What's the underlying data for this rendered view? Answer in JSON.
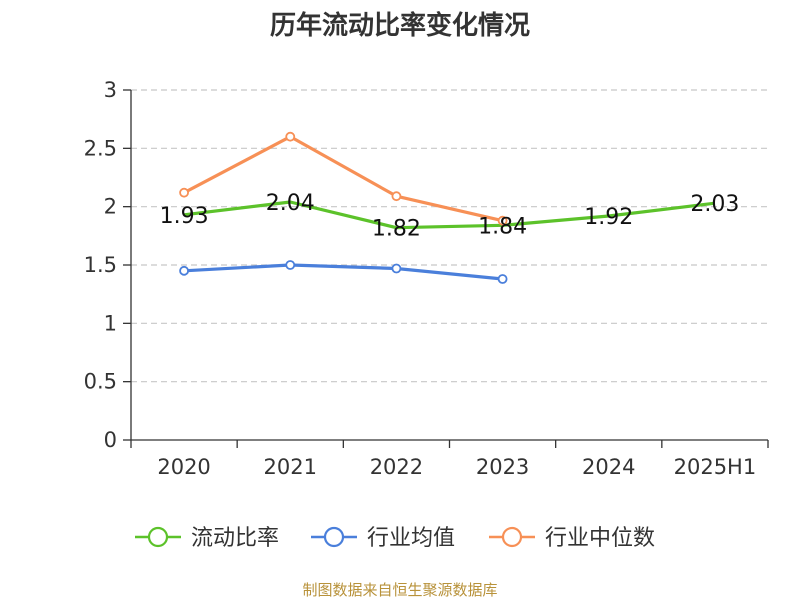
{
  "chart_data": {
    "type": "line",
    "title": "历年流动比率变化情况",
    "categories": [
      "2020",
      "2021",
      "2022",
      "2023",
      "2024",
      "2025H1"
    ],
    "ylim": [
      0,
      3
    ],
    "yticks": [
      "0",
      "0.5",
      "1",
      "1.5",
      "2",
      "2.5",
      "3"
    ],
    "grid": true,
    "legend_position": "bottom",
    "series": [
      {
        "name": "流动比率",
        "color": "#5cc22a",
        "values": [
          1.93,
          2.04,
          1.82,
          1.84,
          1.92,
          2.03
        ],
        "labels": [
          "1.93",
          "2.04",
          "1.82",
          "1.84",
          "1.92",
          "2.03"
        ],
        "markers": false
      },
      {
        "name": "行业均值",
        "color": "#4a7fdb",
        "values": [
          1.45,
          1.5,
          1.47,
          1.38,
          null,
          null
        ],
        "markers": true
      },
      {
        "name": "行业中位数",
        "color": "#f79056",
        "values": [
          2.12,
          2.6,
          2.09,
          1.88,
          null,
          null
        ],
        "markers": true
      }
    ]
  },
  "source_text": "制图数据来自恒生聚源数据库"
}
